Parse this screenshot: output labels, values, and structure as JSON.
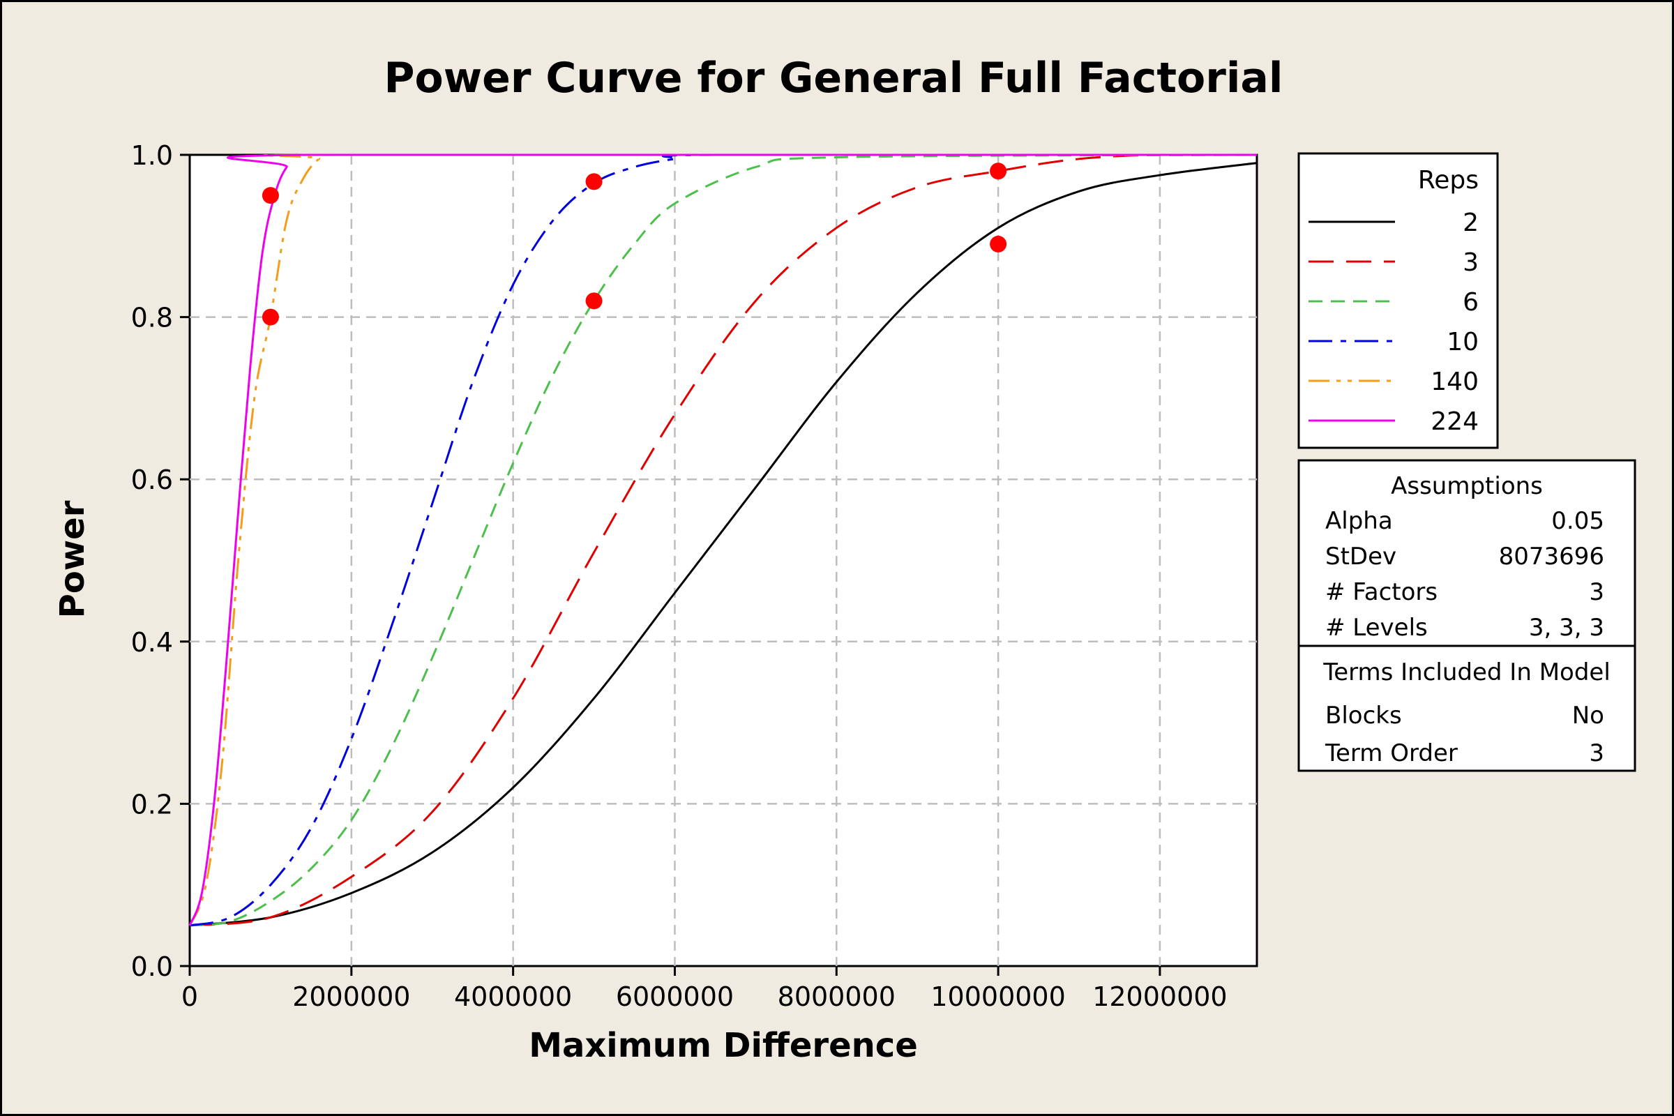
{
  "chart_data": {
    "type": "line",
    "title": "Power Curve for General Full Factorial",
    "xlabel": "Maximum Difference",
    "ylabel": "Power",
    "xlim": [
      0,
      13200000
    ],
    "ylim": [
      0,
      1
    ],
    "x_ticks": [
      "0",
      "2000000",
      "4000000",
      "6000000",
      "8000000",
      "10000000",
      "12000000"
    ],
    "x_tick_values": [
      0,
      2000000,
      4000000,
      6000000,
      8000000,
      10000000,
      12000000
    ],
    "y_ticks": [
      "0.0",
      "0.2",
      "0.4",
      "0.6",
      "0.8",
      "1.0"
    ],
    "y_tick_values": [
      0,
      0.2,
      0.4,
      0.6,
      0.8,
      1.0
    ],
    "grid": true,
    "legend": {
      "title": "Reps",
      "placement": "right"
    },
    "series": [
      {
        "name": "2",
        "color": "#000000",
        "dash": "solid",
        "x": [
          0,
          1000000,
          2000000,
          3000000,
          4000000,
          5000000,
          6000000,
          7000000,
          8000000,
          9000000,
          10000000,
          11000000,
          12000000,
          13200000
        ],
        "y": [
          0.05,
          0.06,
          0.09,
          0.14,
          0.22,
          0.33,
          0.46,
          0.59,
          0.72,
          0.83,
          0.91,
          0.955,
          0.975,
          0.99
        ]
      },
      {
        "name": "3",
        "color": "#e00000",
        "dash": "longdash",
        "x": [
          0,
          1000000,
          2000000,
          3000000,
          4000000,
          5000000,
          6000000,
          7000000,
          8000000,
          9000000,
          10000000,
          11000000,
          12000000,
          13200000
        ],
        "y": [
          0.05,
          0.06,
          0.11,
          0.19,
          0.33,
          0.51,
          0.68,
          0.82,
          0.91,
          0.96,
          0.98,
          0.995,
          1.0,
          1.0
        ]
      },
      {
        "name": "6",
        "color": "#4cbf4c",
        "dash": "dash",
        "x": [
          0,
          500000,
          1000000,
          1500000,
          2000000,
          2500000,
          3000000,
          3500000,
          4000000,
          4500000,
          5000000,
          5500000,
          6000000,
          7000000,
          8000000,
          13200000
        ],
        "y": [
          0.05,
          0.055,
          0.08,
          0.12,
          0.18,
          0.27,
          0.38,
          0.5,
          0.62,
          0.73,
          0.82,
          0.89,
          0.94,
          0.985,
          0.997,
          1.0
        ]
      },
      {
        "name": "10",
        "color": "#0000e0",
        "dash": "dashdot",
        "x": [
          0,
          500000,
          1000000,
          1500000,
          2000000,
          2500000,
          3000000,
          3500000,
          4000000,
          4500000,
          5000000,
          5500000,
          6000000,
          6500000,
          13200000
        ],
        "y": [
          0.05,
          0.06,
          0.1,
          0.17,
          0.28,
          0.42,
          0.57,
          0.72,
          0.84,
          0.92,
          0.965,
          0.985,
          0.995,
          1.0,
          1.0
        ]
      },
      {
        "name": "140",
        "color": "#f59c1a",
        "dash": "dashdotdot",
        "x": [
          0,
          200000,
          400000,
          600000,
          800000,
          1000000,
          1200000,
          1400000,
          1600000,
          1800000,
          13200000
        ],
        "y": [
          0.05,
          0.1,
          0.25,
          0.5,
          0.7,
          0.8,
          0.92,
          0.97,
          0.995,
          1.0,
          1.0
        ]
      },
      {
        "name": "224",
        "color": "#ee00ee",
        "dash": "solid",
        "x": [
          0,
          150000,
          300000,
          450000,
          600000,
          750000,
          900000,
          1050000,
          1200000,
          1400000,
          13200000
        ],
        "y": [
          0.05,
          0.09,
          0.2,
          0.37,
          0.56,
          0.74,
          0.88,
          0.95,
          0.985,
          1.0,
          1.0
        ]
      }
    ],
    "markers": {
      "color": "#ff0000",
      "points": [
        {
          "x": 1000000,
          "y": 0.95
        },
        {
          "x": 1000000,
          "y": 0.8
        },
        {
          "x": 5000000,
          "y": 0.967
        },
        {
          "x": 5000000,
          "y": 0.82
        },
        {
          "x": 10000000,
          "y": 0.98
        },
        {
          "x": 10000000,
          "y": 0.89
        }
      ]
    }
  },
  "assumptions": {
    "title": "Assumptions",
    "rows": [
      {
        "label": "Alpha",
        "value": "0.05"
      },
      {
        "label": "StDev",
        "value": "8073696"
      },
      {
        "label": "# Factors",
        "value": "3"
      },
      {
        "label": "# Levels",
        "value": "3, 3, 3"
      }
    ],
    "terms_title": "Terms Included In Model",
    "terms_rows": [
      {
        "label": "Blocks",
        "value": "No"
      },
      {
        "label": "Term Order",
        "value": "3"
      }
    ]
  }
}
